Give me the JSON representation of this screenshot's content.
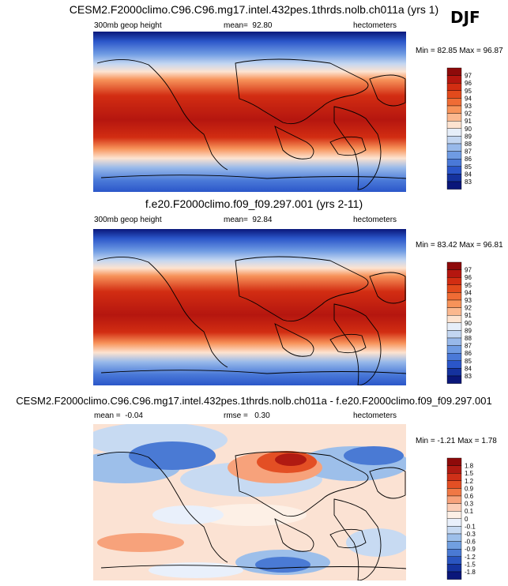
{
  "season": "DJF",
  "chart_data": [
    {
      "type": "heatmap",
      "title": "CESM2.F2000climo.C96.C96.mg17.intel.432pes.1thrds.nolb.ch011a (yrs 1)",
      "left_label": "300mb geop height",
      "mean_label": "mean=",
      "mean": "92.80",
      "units": "hectometers",
      "min_label": "Min =",
      "min": "82.85",
      "max_label": "Max =",
      "max": "96.87",
      "colorbar": {
        "levels": [
          "97",
          "96",
          "95",
          "94",
          "93",
          "92",
          "91",
          "90",
          "89",
          "88",
          "87",
          "86",
          "85",
          "84",
          "83"
        ],
        "colors": [
          "#8e0a0a",
          "#b5160f",
          "#d22d12",
          "#e24a1c",
          "#ef6c35",
          "#f7935a",
          "#fbb88f",
          "#fde3d0",
          "#e6eef9",
          "#c3d6f1",
          "#98b9ea",
          "#6f9be3",
          "#4a79d8",
          "#2b56c9",
          "#15329e",
          "#0a177a"
        ]
      }
    },
    {
      "type": "heatmap",
      "title": "f.e20.F2000climo.f09_f09.297.001 (yrs 2-11)",
      "left_label": "300mb geop height",
      "mean_label": "mean=",
      "mean": "92.84",
      "units": "hectometers",
      "min_label": "Min =",
      "min": "83.42",
      "max_label": "Max =",
      "max": "96.81",
      "colorbar": {
        "levels": [
          "97",
          "96",
          "95",
          "94",
          "93",
          "92",
          "91",
          "90",
          "89",
          "88",
          "87",
          "86",
          "85",
          "84",
          "83"
        ],
        "colors": [
          "#8e0a0a",
          "#b5160f",
          "#d22d12",
          "#e24a1c",
          "#ef6c35",
          "#f7935a",
          "#fbb88f",
          "#fde3d0",
          "#e6eef9",
          "#c3d6f1",
          "#98b9ea",
          "#6f9be3",
          "#4a79d8",
          "#2b56c9",
          "#15329e",
          "#0a177a"
        ]
      }
    },
    {
      "type": "heatmap",
      "title": "CESM2.F2000climo.C96.C96.mg17.intel.432pes.1thrds.nolb.ch011a - f.e20.F2000climo.f09_f09.297.001",
      "mean_label": "mean =",
      "mean": "-0.04",
      "rmse_label": "rmse =",
      "rmse": "0.30",
      "units": "hectometers",
      "min_label": "Min =",
      "min": "-1.21",
      "max_label": "Max =",
      "max": "1.78",
      "colorbar": {
        "levels": [
          "1.8",
          "1.5",
          "1.2",
          "0.9",
          "0.6",
          "0.3",
          "0.1",
          "0",
          "-0.1",
          "-0.3",
          "-0.6",
          "-0.9",
          "-1.2",
          "-1.5",
          "-1.8"
        ],
        "colors": [
          "#8e0a0a",
          "#b01a12",
          "#cf3018",
          "#e34f24",
          "#f07845",
          "#f7a27b",
          "#fbcdb6",
          "#fdf0e6",
          "#e9f0fb",
          "#c7daf2",
          "#9dbfea",
          "#719fe0",
          "#4a7ad4",
          "#2a55c0",
          "#15339f",
          "#0a177a"
        ]
      }
    }
  ]
}
